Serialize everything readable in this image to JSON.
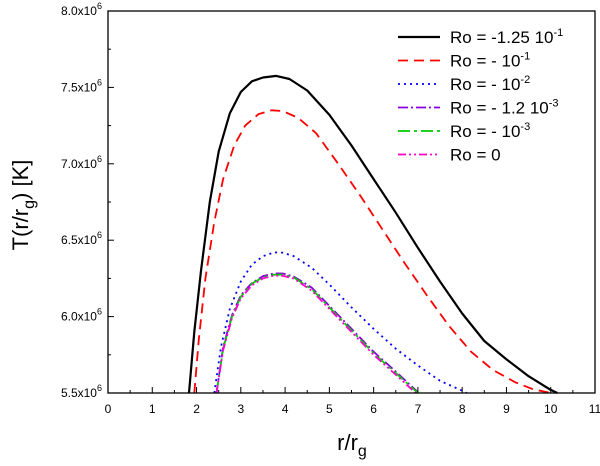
{
  "chart_data": {
    "type": "line",
    "title": "",
    "xlabel": "r/r",
    "xlabel_sub": "g",
    "ylabel": "T(r/r",
    "ylabel_sub": "g",
    "ylabel_suffix": ") [K]",
    "xlim": [
      0,
      11
    ],
    "ylim": [
      5500000,
      8000000
    ],
    "x_ticks": [
      0,
      1,
      2,
      3,
      4,
      5,
      6,
      7,
      8,
      9,
      10,
      11
    ],
    "x_tick_labels": [
      "0",
      "1",
      "2",
      "3",
      "4",
      "5",
      "6",
      "7",
      "8",
      "9",
      "10",
      "11"
    ],
    "y_ticks": [
      5500000,
      6000000,
      6500000,
      7000000,
      7500000,
      8000000
    ],
    "y_tick_labels": [
      {
        "mantissa": "5.5x10",
        "exp": "6"
      },
      {
        "mantissa": "6.0x10",
        "exp": "6"
      },
      {
        "mantissa": "6.5x10",
        "exp": "6"
      },
      {
        "mantissa": "7.0x10",
        "exp": "6"
      },
      {
        "mantissa": "7.5x10",
        "exp": "6"
      },
      {
        "mantissa": "8.0x10",
        "exp": "6"
      }
    ],
    "grid": false,
    "legend_position": "top-right",
    "series": [
      {
        "name": "Ro = -1.25 10",
        "name_exp": "-1",
        "color": "#000000",
        "dash": "solid",
        "x": [
          1.83,
          1.95,
          2.1,
          2.3,
          2.5,
          2.75,
          3.0,
          3.25,
          3.5,
          3.8,
          4.1,
          4.5,
          5.0,
          5.5,
          6.0,
          6.5,
          7.0,
          7.5,
          8.0,
          8.5,
          9.0,
          9.5,
          10.0,
          10.15
        ],
        "y": [
          5500000,
          5900000,
          6300000,
          6750000,
          7080000,
          7330000,
          7470000,
          7540000,
          7565000,
          7575000,
          7555000,
          7480000,
          7320000,
          7120000,
          6900000,
          6680000,
          6450000,
          6230000,
          6020000,
          5840000,
          5720000,
          5610000,
          5520000,
          5500000
        ]
      },
      {
        "name": "Ro = - 10",
        "name_exp": "-1",
        "color": "#ff0000",
        "dash": "10,6",
        "x": [
          1.95,
          2.05,
          2.2,
          2.4,
          2.6,
          2.85,
          3.1,
          3.4,
          3.7,
          3.95,
          4.3,
          4.7,
          5.2,
          5.7,
          6.2,
          6.7,
          7.2,
          7.7,
          8.2,
          8.7,
          9.2,
          9.6,
          10.0
        ],
        "y": [
          5500000,
          5850000,
          6250000,
          6620000,
          6900000,
          7120000,
          7250000,
          7325000,
          7350000,
          7345000,
          7300000,
          7200000,
          7000000,
          6790000,
          6570000,
          6350000,
          6140000,
          5940000,
          5770000,
          5650000,
          5570000,
          5525000,
          5500000
        ]
      },
      {
        "name": "Ro = - 10",
        "name_exp": "-2",
        "color": "#0000ff",
        "dash": "2,4",
        "x": [
          2.4,
          2.55,
          2.75,
          3.0,
          3.25,
          3.5,
          3.75,
          3.95,
          4.2,
          4.6,
          5.0,
          5.5,
          6.0,
          6.5,
          7.0,
          7.5,
          8.0,
          8.1
        ],
        "y": [
          5500000,
          5800000,
          6050000,
          6230000,
          6340000,
          6395000,
          6420000,
          6418000,
          6395000,
          6320000,
          6210000,
          6060000,
          5920000,
          5790000,
          5680000,
          5580000,
          5515000,
          5500000
        ]
      },
      {
        "name": "Ro = - 1.2 10",
        "name_exp": "-3",
        "color": "#8800dd",
        "dash": "10,3,2,3",
        "x": [
          2.45,
          2.6,
          2.8,
          3.0,
          3.25,
          3.5,
          3.75,
          3.95,
          4.2,
          4.6,
          5.0,
          5.5,
          6.0,
          6.5,
          7.0
        ],
        "y": [
          5500000,
          5800000,
          6010000,
          6140000,
          6220000,
          6265000,
          6283000,
          6282000,
          6262000,
          6190000,
          6070000,
          5920000,
          5770000,
          5640000,
          5505000
        ]
      },
      {
        "name": "Ro = - 10",
        "name_exp": "-3",
        "color": "#00cc00",
        "dash": "12,4,3,4",
        "x": [
          2.45,
          2.6,
          2.8,
          3.0,
          3.25,
          3.5,
          3.75,
          3.95,
          4.2,
          4.6,
          5.0,
          5.5,
          6.0,
          6.5,
          7.0
        ],
        "y": [
          5500000,
          5790000,
          6000000,
          6130000,
          6215000,
          6258000,
          6275000,
          6274000,
          6255000,
          6180000,
          6060000,
          5910000,
          5760000,
          5630000,
          5500000
        ]
      },
      {
        "name": "Ro = 0",
        "name_exp": "",
        "color": "#ff00cc",
        "dash": "8,3,2,3,2,3",
        "x": [
          2.45,
          2.6,
          2.8,
          3.0,
          3.25,
          3.5,
          3.75,
          3.95,
          4.2,
          4.6,
          5.0,
          5.5,
          6.0,
          6.5,
          6.95
        ],
        "y": [
          5500000,
          5780000,
          5990000,
          6120000,
          6205000,
          6250000,
          6268000,
          6267000,
          6248000,
          6170000,
          6050000,
          5900000,
          5750000,
          5620000,
          5500000
        ]
      }
    ]
  }
}
